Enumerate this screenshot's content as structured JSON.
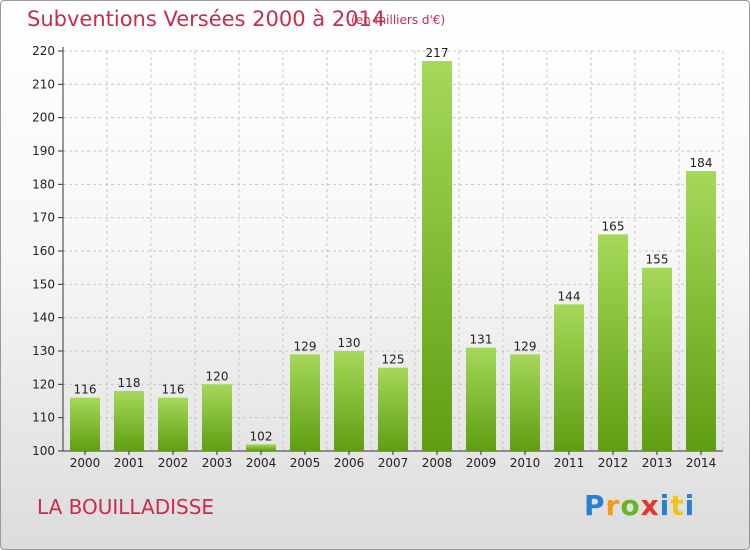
{
  "header": {
    "title": "Subventions Versées 2000 à 2014",
    "unit": "(en milliers d'€)"
  },
  "footer": {
    "commune": "LA BOUILLADISSE",
    "logo_text": "Proxiti"
  },
  "colors": {
    "title": "#cc2b4b",
    "bar_light": "#a6d85a",
    "bar_dark": "#5f9e12",
    "grid": "#c8c8c8"
  },
  "chart_data": {
    "type": "bar",
    "title": "Subventions Versées 2000 à 2014",
    "unit": "(en milliers d'€)",
    "categories": [
      "2000",
      "2001",
      "2002",
      "2003",
      "2004",
      "2005",
      "2006",
      "2007",
      "2008",
      "2009",
      "2010",
      "2011",
      "2012",
      "2013",
      "2014"
    ],
    "values": [
      116,
      118,
      116,
      120,
      102,
      129,
      130,
      125,
      217,
      131,
      129,
      144,
      165,
      155,
      184
    ],
    "ylim": [
      100,
      220
    ],
    "yticks": [
      100,
      110,
      120,
      130,
      140,
      150,
      160,
      170,
      180,
      190,
      200,
      210,
      220
    ],
    "grid": true,
    "data_labels": true
  }
}
